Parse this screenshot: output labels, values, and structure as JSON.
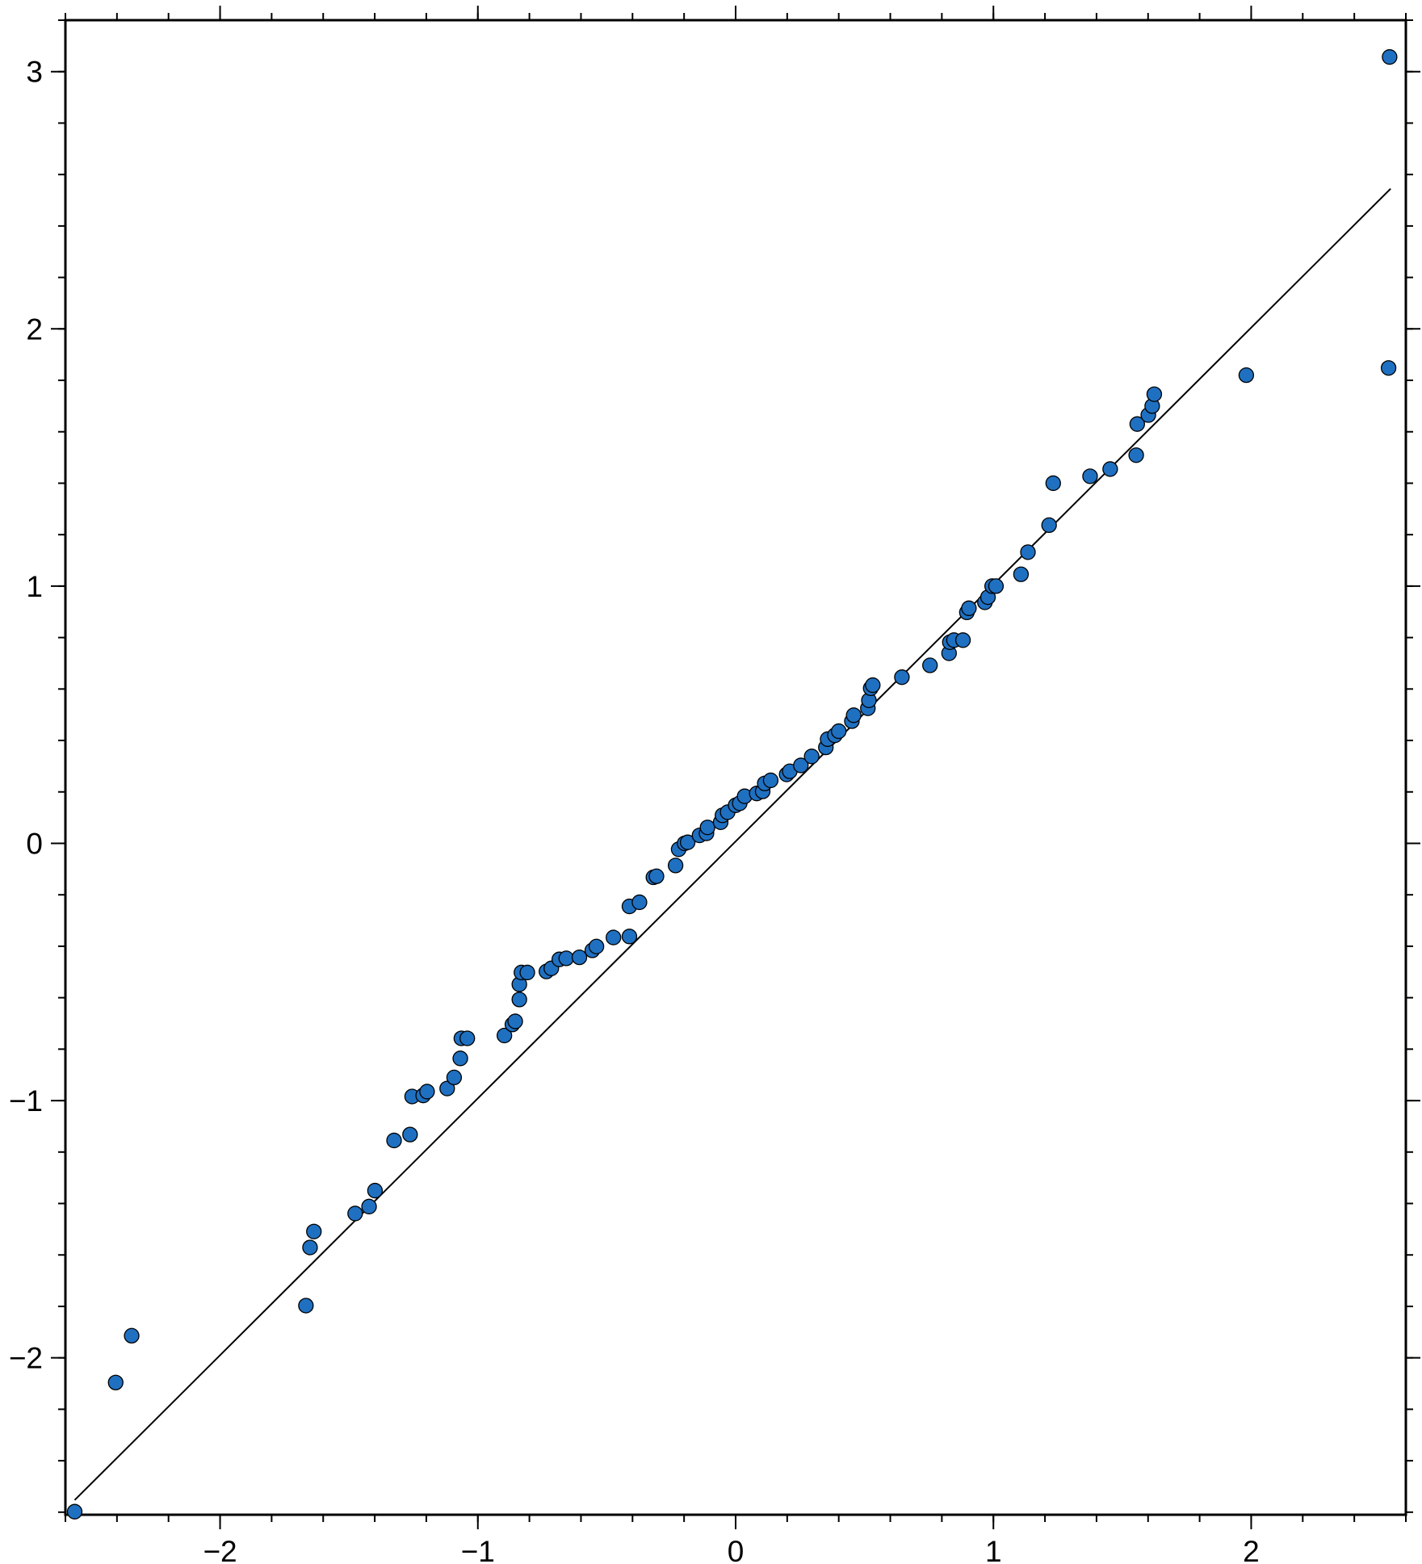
{
  "chart_data": {
    "type": "scatter",
    "xlim": [
      -2.6,
      2.6
    ],
    "ylim": [
      -2.61,
      3.2
    ],
    "xticks": [
      {
        "value": -2,
        "label": "−2"
      },
      {
        "value": -1,
        "label": "−1"
      },
      0,
      1,
      2
    ],
    "yticks": [
      {
        "value": -2,
        "label": "−2"
      },
      {
        "value": -1,
        "label": "−1"
      },
      0,
      1,
      2,
      3
    ],
    "xminorticks": [
      -2.6,
      -2.4,
      -2.2,
      -2.0,
      -1.8,
      -1.6,
      -1.4,
      -1.2,
      -1.0,
      -0.8,
      -0.6,
      -0.4,
      -0.2,
      0.0,
      0.2,
      0.4,
      0.6,
      0.8,
      1.0,
      1.2,
      1.4,
      1.6,
      1.8,
      2.0,
      2.2,
      2.4,
      2.6
    ],
    "yminorticks": [
      -2.6,
      -2.4,
      -2.2,
      -2.0,
      -1.8,
      -1.6,
      -1.4,
      -1.2,
      -1.0,
      -0.8,
      -0.6,
      -0.4,
      -0.2,
      0.0,
      0.2,
      0.4,
      0.6,
      0.8,
      1.0,
      1.2,
      1.4,
      1.6,
      1.8,
      2.0,
      2.2,
      2.4,
      2.6,
      2.8,
      3.0,
      3.2
    ],
    "reference_line": {
      "color": "#000000",
      "x": [
        -2.564,
        2.541
      ],
      "y": [
        -2.553,
        2.545
      ]
    },
    "series": [
      {
        "color": "#1f70c1",
        "x": [
          -2.564,
          -2.405,
          -2.343,
          -1.667,
          -1.651,
          -1.636,
          -1.476,
          -1.422,
          -1.399,
          -1.325,
          -1.263,
          -1.255,
          -1.212,
          -1.197,
          -1.119,
          -1.092,
          -1.068,
          -1.064,
          -1.041,
          -0.897,
          -0.866,
          -0.855,
          -0.839,
          -0.839,
          -0.831,
          -0.808,
          -0.734,
          -0.715,
          -0.684,
          -0.657,
          -0.606,
          -0.556,
          -0.54,
          -0.474,
          -0.412,
          -0.412,
          -0.373,
          -0.319,
          -0.307,
          -0.233,
          -0.221,
          -0.198,
          -0.186,
          -0.14,
          -0.113,
          -0.109,
          -0.058,
          -0.051,
          -0.031,
          0.0,
          0.016,
          0.035,
          0.082,
          0.105,
          0.113,
          0.136,
          0.198,
          0.21,
          0.253,
          0.295,
          0.35,
          0.357,
          0.385,
          0.4,
          0.451,
          0.458,
          0.513,
          0.517,
          0.524,
          0.532,
          0.645,
          0.754,
          0.828,
          0.831,
          0.847,
          0.882,
          0.897,
          0.905,
          0.967,
          0.979,
          0.995,
          1.01,
          1.107,
          1.134,
          1.216,
          1.232,
          1.375,
          1.453,
          1.554,
          1.558,
          1.601,
          1.616,
          1.624,
          1.981,
          2.533,
          2.537
        ],
        "y": [
          -2.598,
          -2.096,
          -1.914,
          -1.797,
          -1.571,
          -1.509,
          -1.439,
          -1.412,
          -1.35,
          -1.155,
          -1.132,
          -0.984,
          -0.98,
          -0.965,
          -0.953,
          -0.91,
          -0.836,
          -0.758,
          -0.758,
          -0.747,
          -0.704,
          -0.692,
          -0.607,
          -0.548,
          -0.502,
          -0.502,
          -0.498,
          -0.486,
          -0.451,
          -0.447,
          -0.443,
          -0.416,
          -0.401,
          -0.366,
          -0.362,
          -0.245,
          -0.229,
          -0.132,
          -0.128,
          -0.086,
          -0.023,
          0.0,
          0.004,
          0.031,
          0.039,
          0.062,
          0.082,
          0.109,
          0.121,
          0.148,
          0.156,
          0.183,
          0.194,
          0.202,
          0.233,
          0.245,
          0.268,
          0.28,
          0.303,
          0.338,
          0.373,
          0.405,
          0.42,
          0.436,
          0.475,
          0.498,
          0.525,
          0.556,
          0.603,
          0.615,
          0.646,
          0.692,
          0.739,
          0.782,
          0.79,
          0.79,
          0.898,
          0.914,
          0.937,
          0.957,
          1.0,
          1.0,
          1.046,
          1.132,
          1.237,
          1.4,
          1.427,
          1.455,
          1.509,
          1.63,
          1.665,
          1.7,
          1.746,
          1.82,
          1.848,
          3.057
        ]
      }
    ]
  }
}
